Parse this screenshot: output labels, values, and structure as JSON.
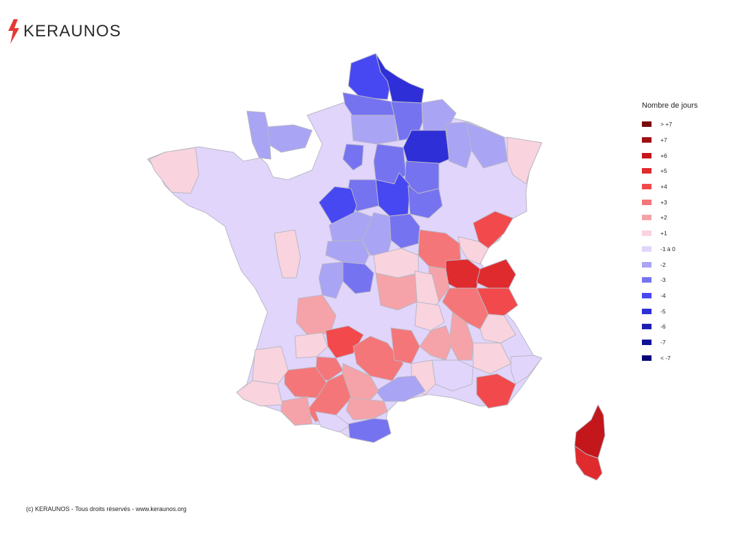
{
  "brand": {
    "name": "KERAUNOS",
    "logo_color": "#e53935"
  },
  "legend": {
    "title": "Nombre de jours",
    "items": [
      {
        "label": "> +7",
        "color": "#7a0a0a"
      },
      {
        "label": "+7",
        "color": "#a00f12"
      },
      {
        "label": "+6",
        "color": "#c4171c"
      },
      {
        "label": "+5",
        "color": "#e02b2e"
      },
      {
        "label": "+4",
        "color": "#f24a4c"
      },
      {
        "label": "+3",
        "color": "#f57679"
      },
      {
        "label": "+2",
        "color": "#f5a3a8"
      },
      {
        "label": "+1",
        "color": "#f9d3de"
      },
      {
        "label": "-1 à 0",
        "color": "#e1d5fb"
      },
      {
        "label": "-2",
        "color": "#aaa4f5"
      },
      {
        "label": "-3",
        "color": "#7673f1"
      },
      {
        "label": "-4",
        "color": "#4848f2"
      },
      {
        "label": "-5",
        "color": "#2f2fd8"
      },
      {
        "label": "-6",
        "color": "#1e1eb3"
      },
      {
        "label": "-7",
        "color": "#121295"
      },
      {
        "label": "< -7",
        "color": "#060678"
      }
    ]
  },
  "footer": "(c) KERAUNOS - Tous droits réservés - www.keraunos.org"
}
